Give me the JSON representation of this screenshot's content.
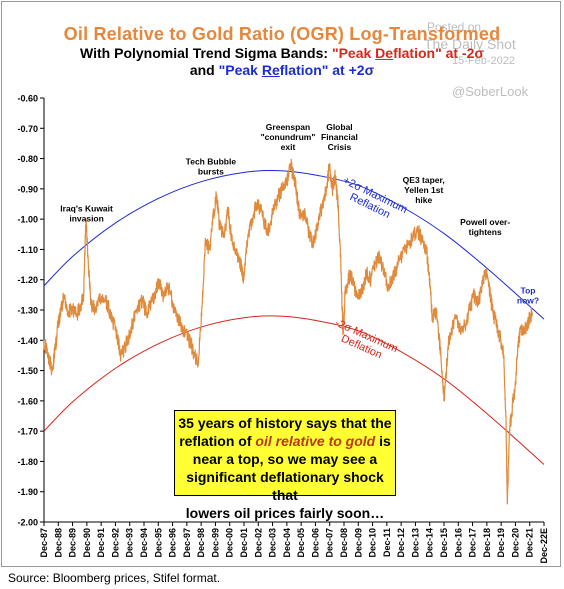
{
  "chart_data": {
    "type": "line",
    "title": "Oil Relative to Gold Ratio (OGR) Log-Transformed",
    "subtitle": {
      "line1_prefix": "With Polynomial Trend Sigma Bands: ",
      "line1_red_a": "\"Peak ",
      "line1_red_u": "De",
      "line1_red_b": "flation\" at -2σ",
      "line2_prefix": "and ",
      "line2_blue_a": "\"Peak ",
      "line2_blue_u": "Re",
      "line2_blue_b": "flation\" at +2σ"
    },
    "ylim": [
      -2.0,
      -0.6
    ],
    "y_ticks": [
      "-0.60",
      "-0.70",
      "-0.80",
      "-0.90",
      "-1.00",
      "-1.10",
      "-1.20",
      "-1.30",
      "-1.40",
      "-1.50",
      "-1.60",
      "-1.70",
      "-1.80",
      "-1.90",
      "-2.00"
    ],
    "x_ticks": [
      "Dec-87",
      "Dec-88",
      "Dec-89",
      "Dec-90",
      "Dec-91",
      "Dec-92",
      "Dec-93",
      "Dec-94",
      "Dec-95",
      "Dec-96",
      "Dec-97",
      "Dec-98",
      "Dec-99",
      "Dec-00",
      "Dec-01",
      "Dec-02",
      "Dec-03",
      "Dec-04",
      "Dec-05",
      "Dec-06",
      "Dec-07",
      "Dec-08",
      "Dec-09",
      "Dec-10",
      "Dec-11",
      "Dec-12",
      "Dec-13",
      "Dec-14",
      "Dec-15",
      "Dec-16",
      "Dec-17",
      "Dec-18",
      "Dec-19",
      "Dec-20",
      "Dec-21",
      "Dec-22E"
    ],
    "xlim": [
      1987.92,
      2022.92
    ],
    "series": [
      {
        "color": "#e08a3c",
        "x": [
          1987.9,
          1988.2,
          1988.5,
          1988.7,
          1988.9,
          1989.1,
          1989.3,
          1989.6,
          1989.9,
          1990.2,
          1990.5,
          1990.7,
          1990.85,
          1991.0,
          1991.2,
          1991.5,
          1991.8,
          1992.1,
          1992.4,
          1992.7,
          1993.0,
          1993.3,
          1993.6,
          1993.9,
          1994.2,
          1994.5,
          1994.8,
          1995.1,
          1995.4,
          1995.7,
          1996.0,
          1996.3,
          1996.6,
          1996.9,
          1997.2,
          1997.5,
          1997.8,
          1998.1,
          1998.4,
          1998.7,
          1998.95,
          1999.2,
          1999.5,
          1999.8,
          2000.0,
          2000.2,
          2000.5,
          2000.8,
          2001.1,
          2001.4,
          2001.7,
          2001.9,
          2002.2,
          2002.5,
          2002.8,
          2003.1,
          2003.4,
          2003.7,
          2004.0,
          2004.3,
          2004.6,
          2004.9,
          2005.2,
          2005.5,
          2005.7,
          2005.9,
          2006.2,
          2006.5,
          2006.8,
          2007.1,
          2007.4,
          2007.7,
          2007.9,
          2008.1,
          2008.3,
          2008.5,
          2008.7,
          2008.85,
          2009.0,
          2009.2,
          2009.4,
          2009.6,
          2009.9,
          2010.2,
          2010.5,
          2010.8,
          2011.1,
          2011.4,
          2011.7,
          2012.0,
          2012.3,
          2012.6,
          2012.9,
          2013.2,
          2013.5,
          2013.8,
          2014.1,
          2014.4,
          2014.7,
          2014.9,
          2015.1,
          2015.4,
          2015.7,
          2015.95,
          2016.2,
          2016.5,
          2016.8,
          2017.1,
          2017.4,
          2017.7,
          2018.0,
          2018.3,
          2018.6,
          2018.8,
          2019.0,
          2019.3,
          2019.6,
          2019.9,
          2020.1,
          2020.25,
          2020.35,
          2020.5,
          2020.7,
          2020.9,
          2021.1,
          2021.3,
          2021.5,
          2021.7,
          2021.9,
          2022.1
        ],
        "y": [
          -1.4,
          -1.45,
          -1.5,
          -1.43,
          -1.35,
          -1.3,
          -1.26,
          -1.31,
          -1.29,
          -1.32,
          -1.28,
          -1.25,
          -1.0,
          -1.12,
          -1.28,
          -1.3,
          -1.27,
          -1.26,
          -1.29,
          -1.33,
          -1.38,
          -1.45,
          -1.42,
          -1.38,
          -1.33,
          -1.29,
          -1.27,
          -1.31,
          -1.28,
          -1.25,
          -1.2,
          -1.26,
          -1.22,
          -1.27,
          -1.32,
          -1.35,
          -1.38,
          -1.4,
          -1.44,
          -1.48,
          -1.32,
          -1.08,
          -1.1,
          -0.98,
          -0.92,
          -1.02,
          -1.06,
          -0.97,
          -1.08,
          -1.12,
          -1.15,
          -1.2,
          -1.05,
          -1.0,
          -0.95,
          -0.97,
          -1.02,
          -1.04,
          -0.96,
          -0.93,
          -0.9,
          -0.88,
          -0.82,
          -0.88,
          -0.95,
          -1.0,
          -0.98,
          -1.06,
          -1.08,
          -1.02,
          -0.95,
          -0.9,
          -0.82,
          -0.9,
          -0.86,
          -0.95,
          -1.15,
          -1.38,
          -1.25,
          -1.2,
          -1.18,
          -1.22,
          -1.25,
          -1.23,
          -1.18,
          -1.2,
          -1.15,
          -1.12,
          -1.18,
          -1.22,
          -1.2,
          -1.16,
          -1.13,
          -1.1,
          -1.08,
          -1.05,
          -1.04,
          -1.07,
          -1.1,
          -1.2,
          -1.32,
          -1.3,
          -1.45,
          -1.6,
          -1.42,
          -1.36,
          -1.32,
          -1.38,
          -1.35,
          -1.3,
          -1.25,
          -1.28,
          -1.22,
          -1.17,
          -1.2,
          -1.3,
          -1.35,
          -1.4,
          -1.45,
          -1.65,
          -1.94,
          -1.7,
          -1.62,
          -1.55,
          -1.42,
          -1.36,
          -1.38,
          -1.35,
          -1.33,
          -1.31
        ]
      },
      {
        "color": "#1b2bd6",
        "x": [
          1987.92,
          1990,
          1993,
          1996,
          1999,
          2002,
          2004.5,
          2007,
          2010,
          2013,
          2016,
          2019,
          2022.92
        ],
        "y": [
          -1.22,
          -1.12,
          -1.01,
          -0.93,
          -0.875,
          -0.845,
          -0.84,
          -0.855,
          -0.89,
          -0.96,
          -1.05,
          -1.165,
          -1.33
        ]
      },
      {
        "color": "#d8261c",
        "x": [
          1987.92,
          1990,
          1993,
          1996,
          1999,
          2002,
          2004.5,
          2007,
          2010,
          2013,
          2016,
          2019,
          2022.92
        ],
        "y": [
          -1.7,
          -1.6,
          -1.49,
          -1.41,
          -1.355,
          -1.325,
          -1.32,
          -1.335,
          -1.37,
          -1.44,
          -1.53,
          -1.645,
          -1.81
        ]
      }
    ],
    "annotations": [
      {
        "id": "kuwait",
        "lines": [
          "Iraq's Kuwait",
          "invasion"
        ],
        "x": 1990.9,
        "y": -0.975,
        "color": "#000000"
      },
      {
        "id": "tech",
        "lines": [
          "Tech Bubble",
          "bursts"
        ],
        "x": 1999.6,
        "y": -0.82,
        "color": "#000000"
      },
      {
        "id": "greenspan",
        "lines": [
          "Greenspan",
          "\"conundrum\"",
          "exit"
        ],
        "x": 2005.0,
        "y": -0.705,
        "color": "#000000"
      },
      {
        "id": "gfc",
        "lines": [
          "Global",
          "Financial",
          "Crisis"
        ],
        "x": 2008.6,
        "y": -0.705,
        "color": "#000000"
      },
      {
        "id": "qe3",
        "lines": [
          "QE3  taper,",
          "Yellen 1st",
          "hike"
        ],
        "x": 2014.5,
        "y": -0.88,
        "color": "#000000"
      },
      {
        "id": "powell",
        "lines": [
          "Powell over-",
          "tightens"
        ],
        "x": 2018.8,
        "y": -1.02,
        "color": "#000000"
      },
      {
        "id": "top",
        "lines": [
          "Top",
          "now?"
        ],
        "x": 2021.8,
        "y": -1.245,
        "color": "#1b2bd6"
      },
      {
        "id": "plus2",
        "lines": [
          "+2σ Maximum",
          "Reflation"
        ],
        "x": 2011.0,
        "y": -0.93,
        "color": "#1b2bd6",
        "rotate": 26
      },
      {
        "id": "minus2",
        "lines": [
          "-2σ Maximum",
          "Deflation"
        ],
        "x": 2010.4,
        "y": -1.395,
        "color": "#d8261c",
        "rotate": 24
      }
    ]
  },
  "watermark": {
    "line1": "Posted on",
    "line2": "The Daily Shot",
    "line3": "15-Feb-2022",
    "handle": "@SoberLook"
  },
  "note": {
    "line1": "35 years of history says that the",
    "line2_prefix": "reflation of ",
    "line2_italic": "oil relative to gold",
    "line2_suffix": " is",
    "line3": "near a top, so we may see a",
    "line4": "significant deflationary shock that",
    "line5": "lowers oil prices fairly soon…"
  },
  "source": "Source: Bloomberg prices, Stifel format."
}
